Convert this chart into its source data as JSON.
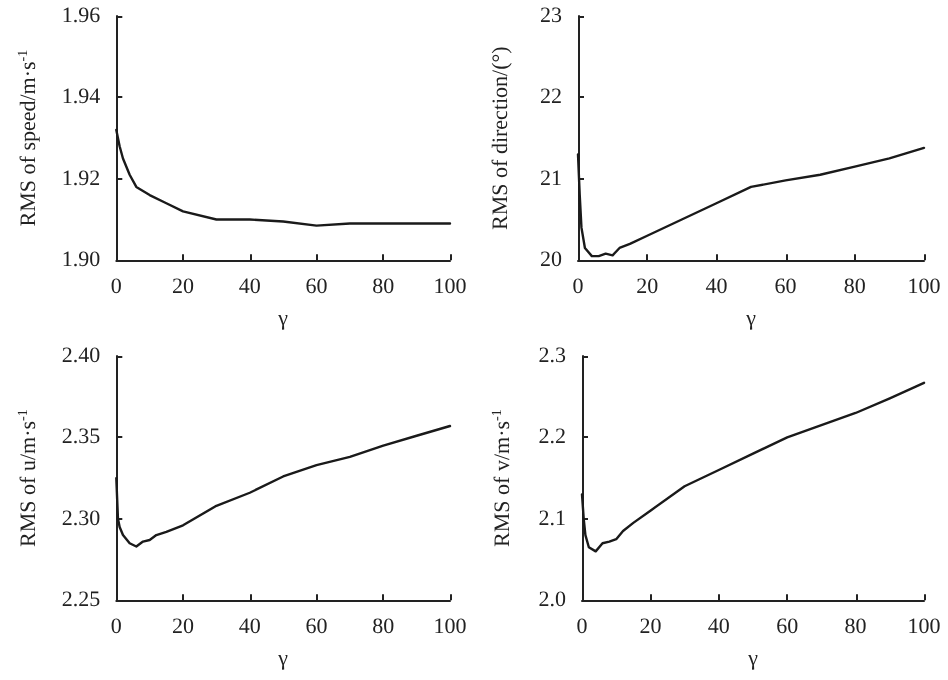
{
  "chart_data": [
    {
      "type": "line",
      "xlabel": "γ",
      "ylabel": "RMS of speed/m·s$^{-1}$",
      "xlim": [
        0,
        100
      ],
      "xticks": [
        0,
        20,
        40,
        60,
        80,
        100
      ],
      "ylim": [
        1.9,
        1.96
      ],
      "yticks": [
        {
          "value": 1.9,
          "label": "1.90"
        },
        {
          "value": 1.92,
          "label": "1.92"
        },
        {
          "value": 1.94,
          "label": "1.94"
        },
        {
          "value": 1.96,
          "label": "1.96"
        }
      ],
      "grid": false,
      "marker": "none",
      "line_style": "solid",
      "series": [
        {
          "color": "#1a1a1a",
          "x": [
            0,
            1,
            2,
            4,
            6,
            10,
            15,
            20,
            30,
            40,
            50,
            60,
            70,
            80,
            100
          ],
          "values": [
            1.932,
            1.928,
            1.925,
            1.921,
            1.918,
            1.916,
            1.914,
            1.912,
            1.91,
            1.91,
            1.9095,
            1.9085,
            1.909,
            1.909,
            1.909
          ]
        }
      ]
    },
    {
      "type": "line",
      "xlabel": "γ",
      "ylabel": "RMS of direction/(°)",
      "xlim": [
        0,
        100
      ],
      "xticks": [
        0,
        20,
        40,
        60,
        80,
        100
      ],
      "ylim": [
        20,
        23
      ],
      "yticks": [
        20,
        21,
        22,
        23
      ],
      "grid": false,
      "marker": "none",
      "line_style": "solid",
      "series": [
        {
          "color": "#1a1a1a",
          "x": [
            0,
            0.5,
            1,
            2,
            4,
            6,
            8,
            10,
            12,
            15,
            20,
            30,
            40,
            50,
            60,
            70,
            80,
            90,
            100
          ],
          "values": [
            21.3,
            20.8,
            20.4,
            20.15,
            20.05,
            20.05,
            20.08,
            20.06,
            20.15,
            20.2,
            20.3,
            20.5,
            20.7,
            20.9,
            20.98,
            21.05,
            21.15,
            21.25,
            21.38
          ]
        }
      ]
    },
    {
      "type": "line",
      "xlabel": "γ",
      "ylabel": "RMS of u/m·s$^{-1}$",
      "xlim": [
        0,
        100
      ],
      "xticks": [
        0,
        20,
        40,
        60,
        80,
        100
      ],
      "ylim": [
        2.25,
        2.4
      ],
      "yticks": [
        2.25,
        {
          "value": 2.3,
          "label": "2.30"
        },
        2.35,
        {
          "value": 2.4,
          "label": "2.40"
        }
      ],
      "grid": false,
      "marker": "none",
      "line_style": "solid",
      "series": [
        {
          "color": "#1a1a1a",
          "x": [
            0,
            0.5,
            1,
            2,
            4,
            6,
            8,
            10,
            12,
            15,
            20,
            30,
            40,
            50,
            60,
            70,
            80,
            90,
            100
          ],
          "values": [
            2.325,
            2.3,
            2.295,
            2.29,
            2.285,
            2.283,
            2.286,
            2.287,
            2.29,
            2.292,
            2.296,
            2.308,
            2.316,
            2.326,
            2.333,
            2.338,
            2.345,
            2.351,
            2.357
          ]
        }
      ]
    },
    {
      "type": "line",
      "xlabel": "γ",
      "ylabel": "RMS of v/m·s$^{-1}$",
      "xlim": [
        0,
        100
      ],
      "xticks": [
        0,
        20,
        40,
        60,
        80,
        100
      ],
      "ylim": [
        2,
        2.3
      ],
      "yticks": [
        {
          "value": 2,
          "label": "2.0"
        },
        2.1,
        2.2,
        2.3
      ],
      "grid": false,
      "marker": "none",
      "line_style": "solid",
      "series": [
        {
          "color": "#1a1a1a",
          "x": [
            0,
            0.5,
            1,
            2,
            4,
            6,
            8,
            10,
            12,
            15,
            20,
            30,
            40,
            50,
            60,
            70,
            80,
            90,
            100
          ],
          "values": [
            2.13,
            2.1,
            2.08,
            2.065,
            2.06,
            2.07,
            2.072,
            2.075,
            2.085,
            2.095,
            2.11,
            2.14,
            2.16,
            2.18,
            2.2,
            2.215,
            2.23,
            2.248,
            2.267
          ]
        }
      ]
    }
  ]
}
